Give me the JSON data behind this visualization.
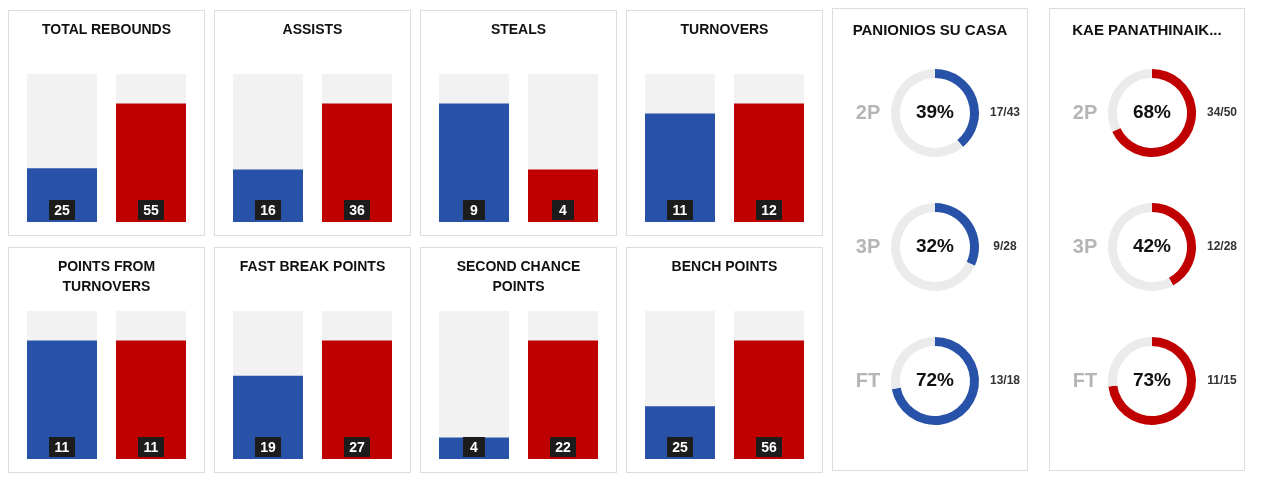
{
  "chart_data": [
    {
      "type": "bar",
      "title": "TOTAL REBOUNDS",
      "categories": [
        null,
        null
      ],
      "values": [
        25,
        55
      ],
      "colors": [
        "#2852a8",
        "#c00000"
      ],
      "data_labels": true
    },
    {
      "type": "bar",
      "title": "ASSISTS",
      "categories": [
        null,
        null
      ],
      "values": [
        16,
        36
      ],
      "colors": [
        "#2852a8",
        "#c00000"
      ],
      "data_labels": true
    },
    {
      "type": "bar",
      "title": "STEALS",
      "categories": [
        null,
        null
      ],
      "values": [
        9,
        4
      ],
      "colors": [
        "#2852a8",
        "#c00000"
      ],
      "data_labels": true
    },
    {
      "type": "bar",
      "title": "TURNOVERS",
      "categories": [
        null,
        null
      ],
      "values": [
        11,
        12
      ],
      "colors": [
        "#2852a8",
        "#c00000"
      ],
      "data_labels": true
    },
    {
      "type": "bar",
      "title": "POINTS FROM TURNOVERS",
      "categories": [
        null,
        null
      ],
      "values": [
        11,
        11
      ],
      "colors": [
        "#2852a8",
        "#c00000"
      ],
      "data_labels": true
    },
    {
      "type": "bar",
      "title": "FAST BREAK POINTS",
      "categories": [
        null,
        null
      ],
      "values": [
        19,
        27
      ],
      "colors": [
        "#2852a8",
        "#c00000"
      ],
      "data_labels": true
    },
    {
      "type": "bar",
      "title": "SECOND CHANCE POINTS",
      "categories": [
        null,
        null
      ],
      "values": [
        4,
        22
      ],
      "colors": [
        "#2852a8",
        "#c00000"
      ],
      "data_labels": true
    },
    {
      "type": "bar",
      "title": "BENCH POINTS",
      "categories": [
        null,
        null
      ],
      "values": [
        25,
        56
      ],
      "colors": [
        "#2852a8",
        "#c00000"
      ],
      "data_labels": true
    },
    {
      "type": "other",
      "title": "PANIONIOS SU CASA"
    },
    {
      "type": "donut",
      "title": "2P",
      "categories": [
        null,
        null
      ],
      "values": [
        39,
        61
      ],
      "colors": [
        "#2852a8",
        "#ebebeb"
      ],
      "value_labels": [
        "39%",
        null
      ],
      "annotations": [
        "17/43"
      ]
    },
    {
      "type": "donut",
      "title": "3P",
      "categories": [
        null,
        null
      ],
      "values": [
        32,
        68
      ],
      "colors": [
        "#2852a8",
        "#ebebeb"
      ],
      "value_labels": [
        "32%",
        null
      ],
      "annotations": [
        "9/28"
      ]
    },
    {
      "type": "donut",
      "title": "FT",
      "categories": [
        null,
        null
      ],
      "values": [
        72,
        28
      ],
      "colors": [
        "#2852a8",
        "#ebebeb"
      ],
      "value_labels": [
        "72%",
        null
      ],
      "annotations": [
        "13/18"
      ]
    },
    {
      "type": "other",
      "title": "KAE PANATHINAIK..."
    },
    {
      "type": "donut",
      "title": "2P",
      "categories": [
        null,
        null
      ],
      "values": [
        68,
        32
      ],
      "colors": [
        "#c00000",
        "#ebebeb"
      ],
      "value_labels": [
        "68%",
        null
      ],
      "annotations": [
        "34/50"
      ]
    },
    {
      "type": "donut",
      "title": "3P",
      "categories": [
        null,
        null
      ],
      "values": [
        42,
        58
      ],
      "colors": [
        "#c00000",
        "#ebebeb"
      ],
      "value_labels": [
        "42%",
        null
      ],
      "annotations": [
        "12/28"
      ]
    },
    {
      "type": "donut",
      "title": "FT",
      "categories": [
        null,
        null
      ],
      "values": [
        73,
        27
      ],
      "colors": [
        "#c00000",
        "#ebebeb"
      ],
      "value_labels": [
        "73%",
        null
      ],
      "annotations": [
        "11/15"
      ]
    }
  ]
}
